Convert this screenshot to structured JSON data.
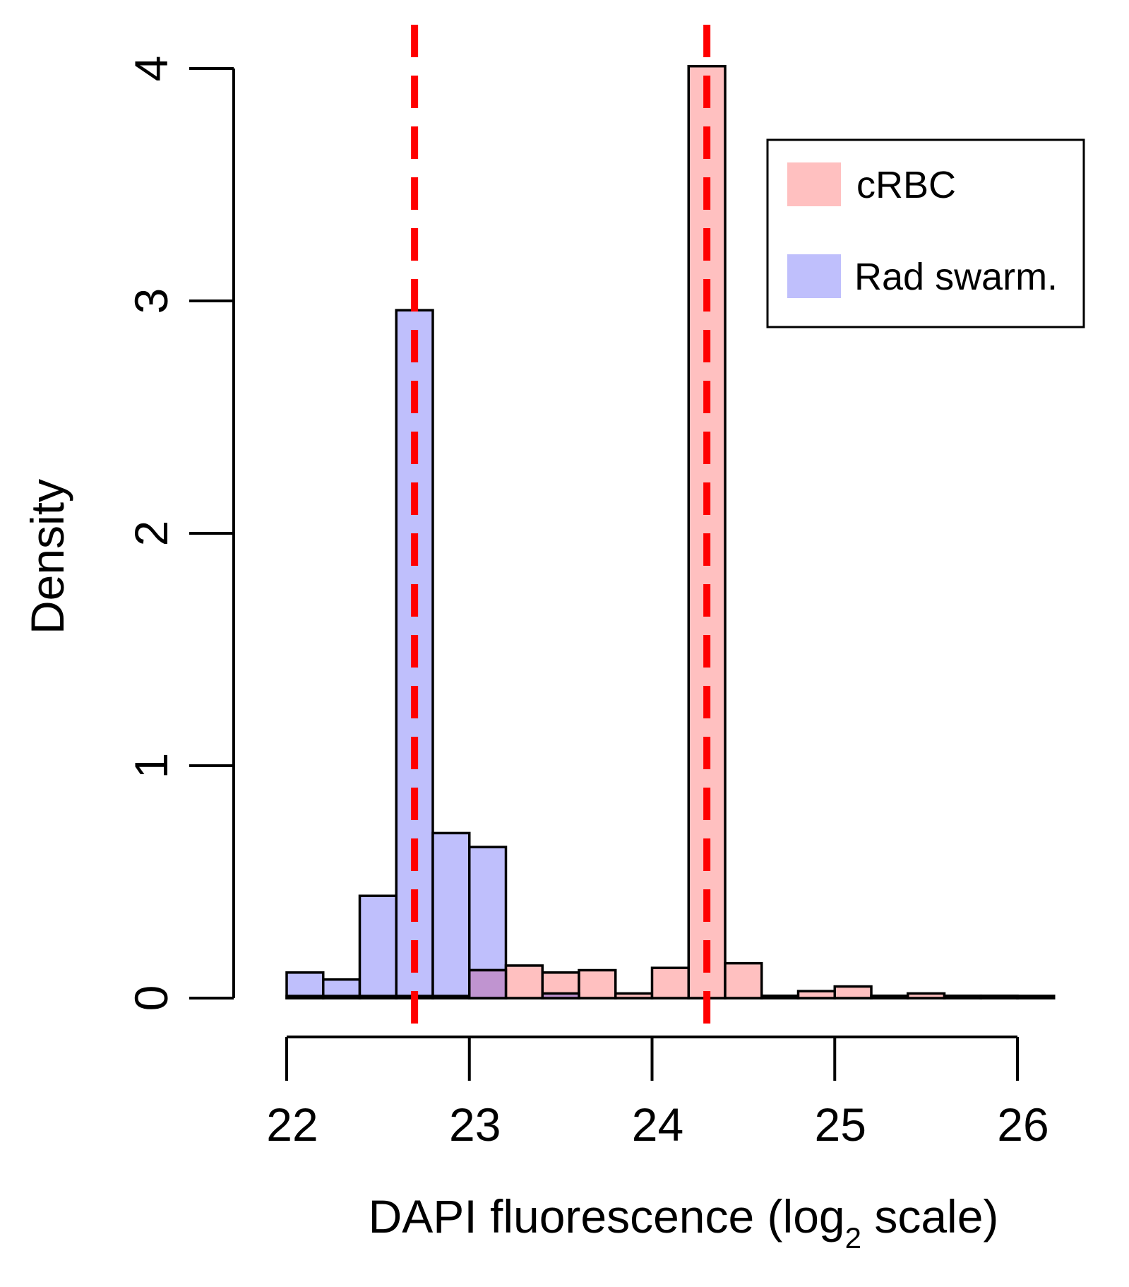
{
  "chart_data": {
    "type": "bar",
    "subtype": "overlaid histogram",
    "xlabel": "DAPI fluorescence (log",
    "xlabel_subscript": "2",
    "xlabel_suffix": " scale)",
    "ylabel": "Density",
    "xlim": [
      22,
      26.2
    ],
    "ylim": [
      0,
      4
    ],
    "x_ticks": [
      "22",
      "23",
      "24",
      "25",
      "26"
    ],
    "y_ticks": [
      "0",
      "1",
      "2",
      "3",
      "4"
    ],
    "bin_edges": [
      22.0,
      22.2,
      22.4,
      22.6,
      22.8,
      23.0,
      23.2,
      23.4,
      23.6,
      23.8,
      24.0,
      24.2,
      24.4,
      24.6,
      24.8,
      25.0,
      25.2,
      25.4,
      25.6,
      25.8,
      26.0,
      26.2
    ],
    "series": [
      {
        "name": "Rad swarm.",
        "color": "#bfbffc",
        "values": [
          0.11,
          0.08,
          0.44,
          2.96,
          0.71,
          0.65,
          0,
          0.02,
          0,
          0,
          0,
          0,
          0,
          0,
          0,
          0,
          0,
          0,
          0,
          0,
          0
        ]
      },
      {
        "name": "cRBC",
        "color": "#ffc0c0",
        "values": [
          0,
          0,
          0,
          0,
          0,
          0.12,
          0.14,
          0.11,
          0.12,
          0.02,
          0.13,
          4.01,
          0.15,
          0.01,
          0.03,
          0.05,
          0.01,
          0.02,
          0.01,
          0.01,
          0
        ]
      }
    ],
    "overlap_color": "#c094d0",
    "reference_lines": [
      {
        "x": 22.7,
        "color": "#ff0000",
        "style": "dashed"
      },
      {
        "x": 24.3,
        "color": "#ff0000",
        "style": "dashed"
      }
    ],
    "legend": {
      "position": "top-right",
      "entries": [
        {
          "label": "cRBC",
          "color": "#ffc0c0"
        },
        {
          "label": "Rad swarm.",
          "color": "#bfbffc"
        }
      ]
    },
    "grid": false
  }
}
